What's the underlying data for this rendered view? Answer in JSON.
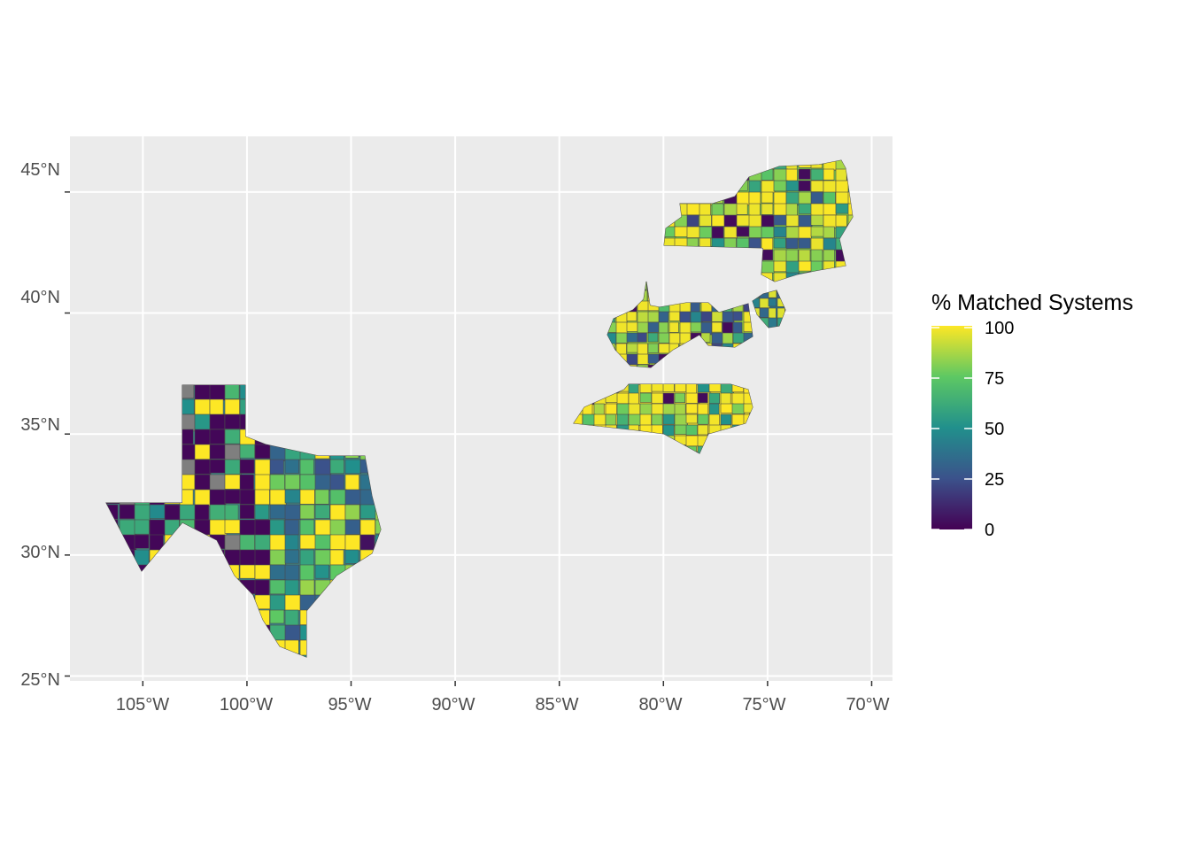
{
  "chart_data": {
    "type": "choropleth",
    "x_ticks": [
      "105°W",
      "100°W",
      "95°W",
      "90°W",
      "85°W",
      "80°W",
      "75°W",
      "70°W"
    ],
    "y_ticks": [
      "25°N",
      "30°N",
      "35°N",
      "40°N",
      "45°N"
    ],
    "x_tick_values": [
      -105,
      -100,
      -95,
      -90,
      -85,
      -80,
      -75,
      -70
    ],
    "y_tick_values": [
      25,
      30,
      35,
      40,
      45
    ],
    "xlim": [
      -108.5,
      -69
    ],
    "ylim": [
      24.8,
      47.3
    ],
    "grid": true,
    "states_shown": [
      "Texas",
      "North Carolina",
      "West Virginia",
      "Maryland",
      "Delaware",
      "New Jersey",
      "New York",
      "Connecticut",
      "Massachusetts",
      "Vermont",
      "New Hampshire",
      "Rhode Island"
    ],
    "missing_color": "#7f7f7f",
    "legend": {
      "title": "% Matched Systems",
      "position": "right",
      "labels": [
        "100",
        "75",
        "50",
        "25",
        "0"
      ],
      "values": [
        100,
        75,
        50,
        25,
        0
      ],
      "colors": [
        "#440154",
        "#3b528b",
        "#21908c",
        "#5dc863",
        "#fde725"
      ]
    }
  }
}
